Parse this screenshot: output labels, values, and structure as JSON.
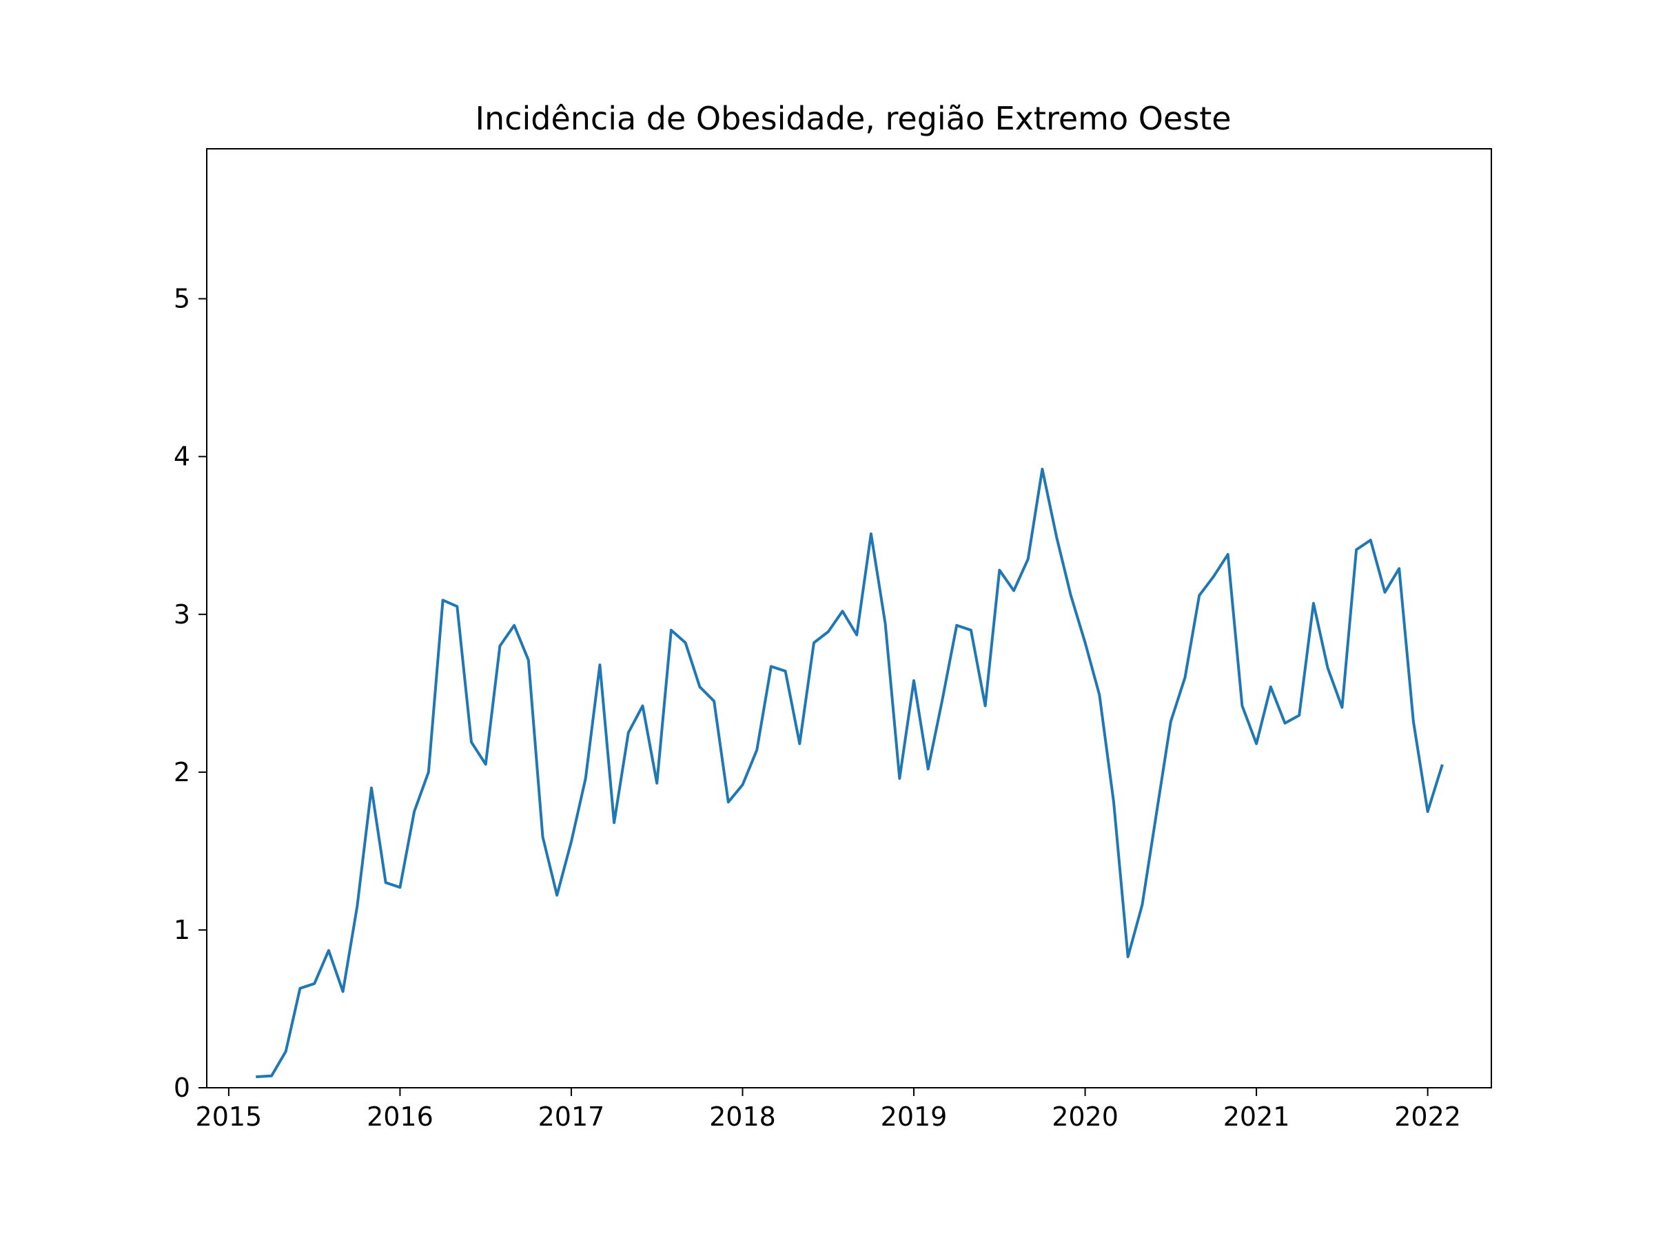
{
  "chart_data": {
    "type": "line",
    "title": "Incidência de Obesidade, região Extremo Oeste",
    "xlabel": "",
    "ylabel": "",
    "x_ticks": [
      "2015",
      "2016",
      "2017",
      "2018",
      "2019",
      "2020",
      "2021",
      "2022"
    ],
    "y_ticks": [
      "0",
      "1",
      "2",
      "3",
      "4",
      "5"
    ],
    "xlim": [
      "2014-11-15",
      "2022-05-15"
    ],
    "ylim": [
      0,
      5.95
    ],
    "grid": false,
    "line_color": "#1f77b4",
    "series": [
      {
        "x": [
          "2015-03",
          "2015-04",
          "2015-05",
          "2015-06",
          "2015-07",
          "2015-08",
          "2015-09",
          "2015-10",
          "2015-11",
          "2015-12",
          "2016-01",
          "2016-02",
          "2016-03",
          "2016-04",
          "2016-05",
          "2016-06",
          "2016-07",
          "2016-08",
          "2016-09",
          "2016-10",
          "2016-11",
          "2016-12",
          "2017-01",
          "2017-02",
          "2017-03",
          "2017-04",
          "2017-05",
          "2017-06",
          "2017-07",
          "2017-08",
          "2017-09",
          "2017-10",
          "2017-11",
          "2017-12",
          "2018-01",
          "2018-02",
          "2018-03",
          "2018-04",
          "2018-05",
          "2018-06",
          "2018-07",
          "2018-08",
          "2018-09",
          "2018-10",
          "2018-11",
          "2018-12",
          "2019-01",
          "2019-02",
          "2019-03",
          "2019-04",
          "2019-05",
          "2019-06",
          "2019-07",
          "2019-08",
          "2019-09",
          "2019-10",
          "2019-11",
          "2019-12",
          "2020-01",
          "2020-02",
          "2020-03",
          "2020-04",
          "2020-05",
          "2020-06",
          "2020-07",
          "2020-08",
          "2020-09",
          "2020-10",
          "2020-11",
          "2020-12",
          "2021-01",
          "2021-02",
          "2021-03",
          "2021-04",
          "2021-05",
          "2021-06",
          "2021-07",
          "2021-08",
          "2021-09",
          "2021-10",
          "2021-11",
          "2021-12",
          "2022-01",
          "2022-02"
        ],
        "values": [
          0.07,
          0.075,
          0.23,
          0.63,
          0.66,
          0.87,
          0.61,
          1.15,
          1.9,
          1.3,
          1.27,
          1.75,
          2.0,
          3.09,
          3.05,
          2.19,
          2.05,
          2.8,
          2.93,
          2.71,
          1.59,
          1.22,
          1.56,
          1.96,
          2.68,
          1.68,
          2.25,
          2.42,
          1.93,
          2.9,
          2.82,
          2.54,
          2.45,
          1.81,
          1.92,
          2.14,
          2.67,
          2.64,
          2.18,
          2.82,
          2.89,
          3.02,
          2.87,
          3.51,
          2.94,
          1.96,
          2.58,
          2.02,
          2.46,
          2.93,
          2.9,
          2.42,
          3.28,
          3.15,
          3.35,
          3.92,
          3.49,
          3.12,
          2.82,
          2.49,
          1.81,
          0.83,
          1.16,
          1.74,
          2.32,
          2.6,
          3.12,
          3.24,
          3.38,
          2.42,
          2.18,
          2.54,
          2.31,
          2.36,
          3.07,
          2.66,
          2.41,
          3.41,
          3.47,
          3.14,
          3.29,
          2.32,
          1.75,
          2.04
        ]
      }
    ]
  }
}
